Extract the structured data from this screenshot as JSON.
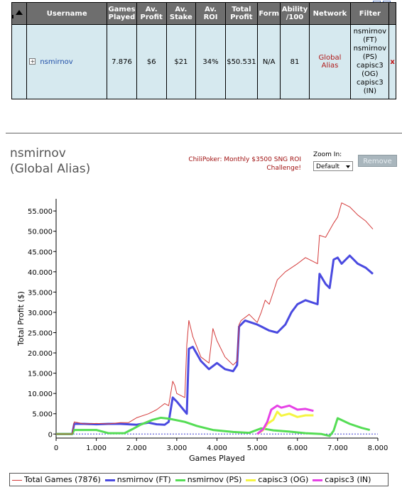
{
  "table": {
    "headers": [
      "",
      "Username",
      "Games Played",
      "Av. Profit",
      "Av. Stake",
      "Av. ROI",
      "Total Profit",
      "Form",
      "Ability /100",
      "Network",
      "Filter",
      ""
    ],
    "row": {
      "username": "nsmirnov",
      "games_played": "7.876",
      "av_profit": "$6",
      "av_stake": "$21",
      "av_roi": "34%",
      "total_profit": "$50.531",
      "form": "N/A",
      "ability": "81",
      "network": "Global Alias",
      "filter_lines": [
        "nsmirnov",
        "(FT)",
        "nsmirnov",
        "(PS)",
        "capisc3",
        "(OG)",
        "capisc3",
        "(IN)"
      ],
      "remove": "x"
    }
  },
  "player": {
    "name_line1": "nsmirnov",
    "name_line2": "(Global Alias)"
  },
  "promo": {
    "line1": "ChiliPoker: Monthly $3500 SNG ROI",
    "line2": "Challenge!"
  },
  "zoom": {
    "label": "Zoom In:",
    "selected": "Default"
  },
  "remove_button": "Remove",
  "chart_data": {
    "type": "line",
    "xlabel": "Games Played",
    "ylabel": "Total Profit ($)",
    "xlim": [
      0,
      8000
    ],
    "ylim": [
      -1000,
      58000
    ],
    "x_ticks": [
      0,
      1000,
      2000,
      3000,
      4000,
      5000,
      6000,
      7000,
      8000
    ],
    "x_tick_labels": [
      "0",
      "1.000",
      "2.000",
      "3.000",
      "4.000",
      "5.000",
      "6.000",
      "7.000",
      "8.000"
    ],
    "y_ticks": [
      0,
      5000,
      10000,
      15000,
      20000,
      25000,
      30000,
      35000,
      40000,
      45000,
      50000,
      55000
    ],
    "y_tick_labels": [
      "0",
      "5.000",
      "10.000",
      "15.000",
      "20.000",
      "25.000",
      "30.000",
      "35.000",
      "40.000",
      "45.000",
      "50.000",
      "55.000"
    ],
    "zero_line": {
      "color": "#3b3bd0",
      "style": "dotted"
    },
    "legend_position": "bottom",
    "series": [
      {
        "name": "Total Games (7876)",
        "color": "#d43a3a",
        "width": 1,
        "x": [
          0,
          400,
          450,
          700,
          1000,
          1300,
          1600,
          1800,
          2000,
          2300,
          2500,
          2700,
          2800,
          2900,
          2950,
          3000,
          3200,
          3250,
          3300,
          3350,
          3400,
          3600,
          3800,
          3900,
          4000,
          4200,
          4400,
          4500,
          4550,
          4600,
          4800,
          5000,
          5100,
          5200,
          5300,
          5400,
          5500,
          5700,
          6000,
          6200,
          6500,
          6550,
          6700,
          6900,
          7000,
          7100,
          7300,
          7500,
          7700,
          7876
        ],
        "y": [
          0,
          0,
          3000,
          2500,
          2600,
          2500,
          2800,
          2800,
          4000,
          5000,
          6000,
          7500,
          7000,
          13000,
          12000,
          10000,
          9000,
          22000,
          28000,
          26000,
          24000,
          19000,
          17500,
          26000,
          23000,
          19000,
          17000,
          18000,
          27000,
          28000,
          29500,
          27500,
          30000,
          33000,
          32000,
          35000,
          38000,
          40000,
          42000,
          43500,
          42000,
          49000,
          48500,
          52000,
          53500,
          57000,
          56000,
          54000,
          52500,
          50531
        ]
      },
      {
        "name": "nsmirnov (FT)",
        "color": "#4a4ae0",
        "width": 3,
        "x": [
          0,
          400,
          450,
          700,
          1000,
          1300,
          1600,
          1800,
          2000,
          2300,
          2500,
          2700,
          2800,
          2900,
          3000,
          3250,
          3300,
          3400,
          3600,
          3800,
          4000,
          4200,
          4400,
          4500,
          4550,
          4700,
          5000,
          5100,
          5300,
          5500,
          5700,
          5850,
          6000,
          6200,
          6500,
          6550,
          6700,
          6800,
          6900,
          7000,
          7100,
          7300,
          7500,
          7700,
          7876
        ],
        "y": [
          0,
          0,
          2500,
          2500,
          2400,
          2500,
          2500,
          2400,
          2300,
          2800,
          2400,
          2300,
          3000,
          9000,
          8000,
          5000,
          21000,
          21500,
          18000,
          16000,
          17500,
          16000,
          15500,
          17000,
          26500,
          28000,
          27000,
          26500,
          25500,
          25000,
          27000,
          30000,
          32000,
          33000,
          32000,
          39500,
          37000,
          36000,
          43000,
          43500,
          42000,
          44000,
          42000,
          41000,
          39500
        ]
      },
      {
        "name": "nsmirnov (PS)",
        "color": "#55dd55",
        "width": 3,
        "x": [
          0,
          400,
          450,
          1000,
          1300,
          1700,
          1900,
          2100,
          2400,
          2600,
          2800,
          3200,
          3500,
          3900,
          4400,
          4800,
          5100,
          5400,
          5800,
          6200,
          6600,
          6800,
          6900,
          7000,
          7300,
          7600,
          7800
        ],
        "y": [
          0,
          0,
          1000,
          1000,
          200,
          200,
          1200,
          2300,
          3500,
          4000,
          3800,
          3000,
          2000,
          1000,
          500,
          300,
          1400,
          900,
          600,
          200,
          0,
          -500,
          800,
          3900,
          2500,
          1500,
          1000
        ]
      },
      {
        "name": "capisc3 (OG)",
        "color": "#f5f542",
        "width": 3,
        "x": [
          5000,
          5150,
          5250,
          5400,
          5500,
          5600,
          5800,
          6000,
          6200,
          6400
        ],
        "y": [
          0,
          1000,
          2500,
          3500,
          5500,
          4500,
          5000,
          4200,
          4600,
          4600
        ]
      },
      {
        "name": "capisc3 (IN)",
        "color": "#e642e6",
        "width": 3,
        "x": [
          5000,
          5150,
          5250,
          5350,
          5500,
          5600,
          5800,
          6000,
          6200,
          6400
        ],
        "y": [
          0,
          1200,
          3000,
          6000,
          7000,
          6500,
          7000,
          6000,
          6200,
          5700
        ]
      }
    ]
  }
}
